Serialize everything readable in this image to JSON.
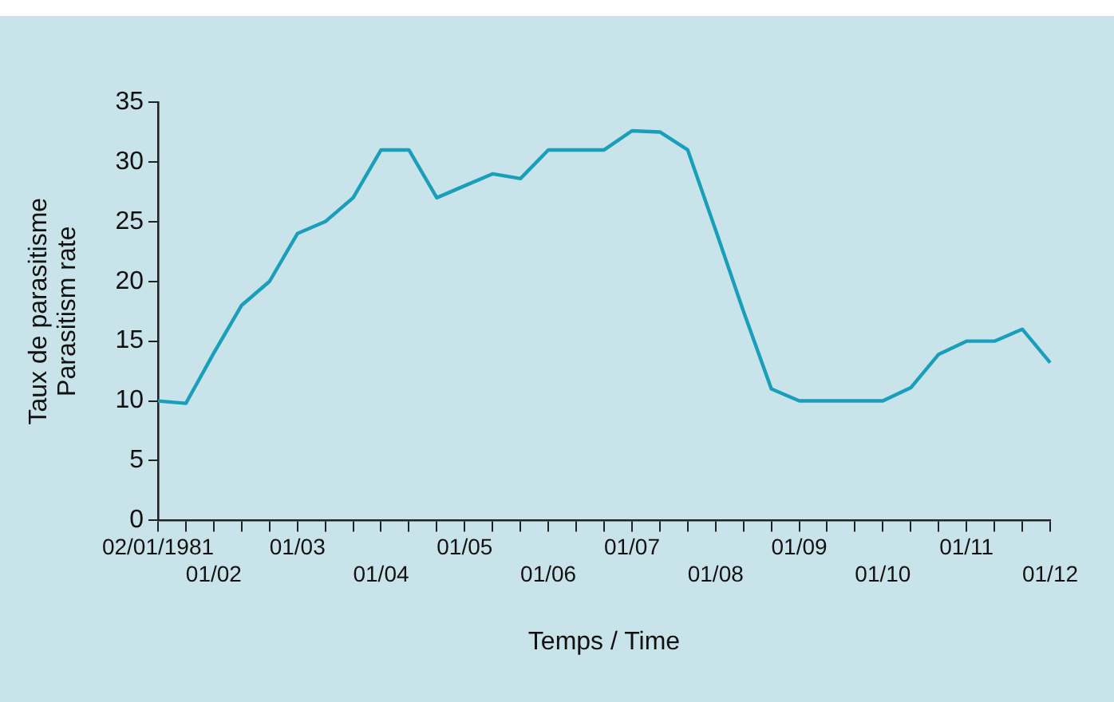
{
  "chart_data": {
    "type": "line",
    "xlabel": "Temps / Time",
    "ylabel": "Taux de parasitisme\nParasitism rate",
    "categories": [
      "02/01/1981",
      null,
      "01/02",
      null,
      null,
      "01/03",
      null,
      null,
      "01/04",
      null,
      null,
      "01/05",
      null,
      null,
      "01/06",
      null,
      null,
      "01/07",
      null,
      null,
      "01/08",
      null,
      null,
      "01/09",
      null,
      null,
      "01/10",
      null,
      null,
      "01/11",
      null,
      null,
      "01/12"
    ],
    "series": [
      {
        "color": "#1a9fba",
        "values": [
          10,
          9.8,
          14,
          18,
          20,
          24,
          25,
          27,
          31,
          31,
          27,
          28,
          29,
          28.6,
          31,
          31,
          31,
          32.6,
          32.5,
          31,
          24.3,
          17.5,
          11,
          10,
          10,
          10,
          10,
          11.1,
          13.9,
          15,
          15,
          16,
          13.2
        ]
      }
    ],
    "ylim": [
      0,
      35
    ],
    "yticks": [
      0,
      5,
      10,
      15,
      20,
      25,
      30,
      35
    ],
    "grid": false,
    "legend": false,
    "marker": "none",
    "line_style": "solid"
  }
}
